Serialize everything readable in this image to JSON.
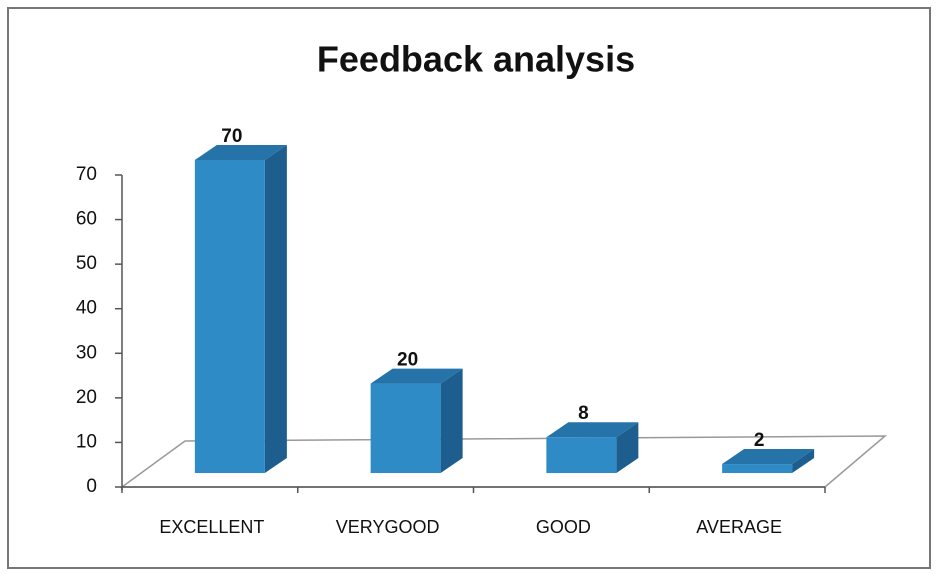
{
  "chart_data": {
    "type": "bar",
    "title": "Feedback analysis",
    "categories": [
      "EXCELLENT",
      "VERYGOOD",
      "GOOD",
      "AVERAGE"
    ],
    "values": [
      70,
      20,
      8,
      2
    ],
    "color": "#2e8bc6",
    "ylim": [
      0,
      70
    ],
    "yticks": [
      0,
      10,
      20,
      30,
      40,
      50,
      60,
      70
    ]
  }
}
